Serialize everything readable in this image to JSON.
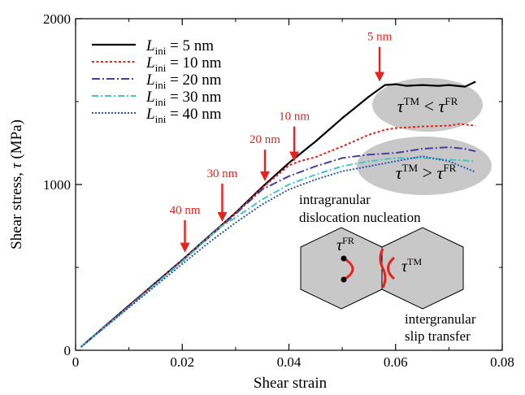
{
  "chart_data": {
    "type": "line",
    "xlabel": "Shear strain",
    "ylabel_prefix": "Shear stress, ",
    "ylabel_symbol": "τ",
    "ylabel_unit": " (MPa)",
    "xlim": [
      0,
      0.08
    ],
    "ylim": [
      0,
      2000
    ],
    "xticks": [
      {
        "value": 0,
        "label": "0"
      },
      {
        "value": 0.02,
        "label": "0.02"
      },
      {
        "value": 0.04,
        "label": "0.04"
      },
      {
        "value": 0.06,
        "label": "0.06"
      },
      {
        "value": 0.08,
        "label": "0.08"
      }
    ],
    "yticks": [
      {
        "value": 0,
        "label": "0"
      },
      {
        "value": 1000,
        "label": "1000"
      },
      {
        "value": 2000,
        "label": "2000"
      }
    ],
    "legend_position": "top-left",
    "legend_var": "L",
    "legend_sub": "ini",
    "series": [
      {
        "name": "= 5 nm",
        "color": "#000000",
        "dash": "",
        "width": 2.2,
        "points": [
          [
            0.001,
            20
          ],
          [
            0.01,
            270
          ],
          [
            0.02,
            545
          ],
          [
            0.03,
            830
          ],
          [
            0.035,
            985
          ],
          [
            0.04,
            1130
          ],
          [
            0.045,
            1260
          ],
          [
            0.05,
            1400
          ],
          [
            0.055,
            1530
          ],
          [
            0.058,
            1600
          ],
          [
            0.06,
            1605
          ],
          [
            0.062,
            1595
          ],
          [
            0.065,
            1600
          ],
          [
            0.068,
            1595
          ],
          [
            0.07,
            1600
          ],
          [
            0.073,
            1590
          ],
          [
            0.075,
            1620
          ]
        ]
      },
      {
        "name": "= 10 nm",
        "color": "#e8221c",
        "dash": "3,2.5",
        "width": 2,
        "points": [
          [
            0.001,
            20
          ],
          [
            0.01,
            268
          ],
          [
            0.02,
            543
          ],
          [
            0.03,
            828
          ],
          [
            0.035,
            980
          ],
          [
            0.04,
            1115
          ],
          [
            0.042,
            1140
          ],
          [
            0.045,
            1165
          ],
          [
            0.05,
            1230
          ],
          [
            0.055,
            1300
          ],
          [
            0.058,
            1330
          ],
          [
            0.06,
            1340
          ],
          [
            0.065,
            1350
          ],
          [
            0.07,
            1355
          ],
          [
            0.072,
            1365
          ],
          [
            0.075,
            1355
          ]
        ]
      },
      {
        "name": "= 20 nm",
        "color": "#4b3f9a",
        "dash": "10,3,2,3",
        "width": 2,
        "points": [
          [
            0.001,
            20
          ],
          [
            0.01,
            265
          ],
          [
            0.02,
            540
          ],
          [
            0.03,
            822
          ],
          [
            0.035,
            970
          ],
          [
            0.04,
            1050
          ],
          [
            0.045,
            1110
          ],
          [
            0.05,
            1160
          ],
          [
            0.055,
            1180
          ],
          [
            0.06,
            1190
          ],
          [
            0.065,
            1215
          ],
          [
            0.07,
            1225
          ],
          [
            0.073,
            1215
          ],
          [
            0.075,
            1200
          ]
        ]
      },
      {
        "name": "= 30 nm",
        "color": "#45c4c4",
        "dash": "8,3,2,3",
        "width": 2,
        "points": [
          [
            0.001,
            20
          ],
          [
            0.01,
            262
          ],
          [
            0.02,
            535
          ],
          [
            0.027,
            740
          ],
          [
            0.03,
            800
          ],
          [
            0.035,
            910
          ],
          [
            0.04,
            1000
          ],
          [
            0.045,
            1060
          ],
          [
            0.05,
            1110
          ],
          [
            0.055,
            1140
          ],
          [
            0.06,
            1160
          ],
          [
            0.065,
            1160
          ],
          [
            0.07,
            1150
          ],
          [
            0.075,
            1140
          ]
        ]
      },
      {
        "name": "= 40 nm",
        "color": "#2a56b0",
        "dash": "2,2",
        "width": 2,
        "points": [
          [
            0.001,
            20
          ],
          [
            0.01,
            258
          ],
          [
            0.02,
            520
          ],
          [
            0.025,
            650
          ],
          [
            0.03,
            770
          ],
          [
            0.035,
            880
          ],
          [
            0.04,
            970
          ],
          [
            0.045,
            1030
          ],
          [
            0.05,
            1080
          ],
          [
            0.055,
            1110
          ],
          [
            0.06,
            1140
          ],
          [
            0.065,
            1170
          ],
          [
            0.07,
            1140
          ],
          [
            0.075,
            1075
          ]
        ]
      }
    ],
    "arrows": [
      {
        "label": "5 nm",
        "x": 0.057,
        "y_tip": 1620,
        "y_tail": 1830
      },
      {
        "label": "10 nm",
        "x": 0.041,
        "y_tip": 1140,
        "y_tail": 1350
      },
      {
        "label": "20 nm",
        "x": 0.0355,
        "y_tip": 1020,
        "y_tail": 1210
      },
      {
        "label": "30 nm",
        "x": 0.0275,
        "y_tip": 775,
        "y_tail": 1005
      },
      {
        "label": "40 nm",
        "x": 0.0205,
        "y_tip": 590,
        "y_tail": 785
      }
    ],
    "annotations": {
      "upper_ellipse": {
        "lhs": "τ",
        "lhs_sup": "TM",
        "op": " < ",
        "rhs": "τ",
        "rhs_sup": "FR"
      },
      "lower_ellipse": {
        "lhs": "τ",
        "lhs_sup": "TM",
        "op": " > ",
        "rhs": "τ",
        "rhs_sup": "FR"
      },
      "intragranular_line1": "intragranular",
      "intragranular_line2": "dislocation nucleation",
      "intergranular_line1": "intergranular",
      "intergranular_line2": "slip transfer",
      "grain_left_sym": "τ",
      "grain_left_sup": "FR",
      "grain_right_sym": "τ",
      "grain_right_sup": "TM"
    }
  },
  "colors": {
    "arrow": "#e8221c",
    "ellipse": "#c8c8c8",
    "grain": "#c8c8c8",
    "dislocation": "#e8221c"
  }
}
